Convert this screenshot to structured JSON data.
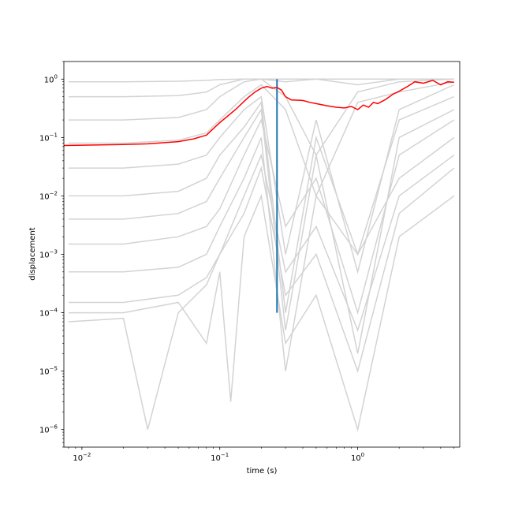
{
  "chart_data": {
    "type": "line",
    "title": "",
    "xlabel": "time (s)",
    "ylabel": "displacement",
    "xscale": "log",
    "yscale": "log",
    "xlim": [
      0.0074,
      5.5
    ],
    "ylim": [
      5e-07,
      2.0
    ],
    "grid": false,
    "legend": "none",
    "x_ticks": [
      {
        "value": 0.01,
        "base": "10",
        "exp": "−2"
      },
      {
        "value": 0.1,
        "base": "10",
        "exp": "−1"
      },
      {
        "value": 1,
        "base": "10",
        "exp": "0"
      }
    ],
    "y_ticks": [
      {
        "value": 1e-06,
        "base": "10",
        "exp": "−6"
      },
      {
        "value": 1e-05,
        "base": "10",
        "exp": "−5"
      },
      {
        "value": 0.0001,
        "base": "10",
        "exp": "−4"
      },
      {
        "value": 0.001,
        "base": "10",
        "exp": "−3"
      },
      {
        "value": 0.01,
        "base": "10",
        "exp": "−2"
      },
      {
        "value": 0.1,
        "base": "10",
        "exp": "−1"
      },
      {
        "value": 1,
        "base": "10",
        "exp": "0"
      }
    ],
    "colors": {
      "background_series": "#d3d3d3",
      "highlight_series": "#ff0000",
      "marker_line": "#1f77b4"
    },
    "background_series": [
      {
        "x": [
          0.008,
          0.02,
          0.05,
          0.08,
          0.1,
          0.15,
          0.2,
          0.3,
          0.5,
          1,
          2,
          5
        ],
        "values": [
          0.9,
          0.9,
          0.92,
          0.95,
          0.98,
          1,
          1,
          1,
          1,
          1,
          1,
          1
        ]
      },
      {
        "x": [
          0.008,
          0.02,
          0.05,
          0.08,
          0.1,
          0.15,
          0.2,
          0.3,
          0.5,
          1,
          2,
          5
        ],
        "values": [
          0.5,
          0.5,
          0.52,
          0.6,
          0.8,
          1,
          1,
          0.9,
          1,
          0.8,
          1,
          1
        ]
      },
      {
        "x": [
          0.008,
          0.02,
          0.05,
          0.08,
          0.1,
          0.15,
          0.2,
          0.3,
          0.5,
          1,
          2,
          5
        ],
        "values": [
          0.2,
          0.2,
          0.22,
          0.3,
          0.5,
          0.9,
          1,
          0.5,
          0.05,
          0.6,
          0.9,
          1
        ]
      },
      {
        "x": [
          0.008,
          0.02,
          0.05,
          0.08,
          0.1,
          0.15,
          0.2,
          0.3,
          0.5,
          1,
          2,
          5
        ],
        "values": [
          0.08,
          0.08,
          0.09,
          0.12,
          0.2,
          0.5,
          0.8,
          0.3,
          0.01,
          0.4,
          0.6,
          0.9
        ]
      },
      {
        "x": [
          0.008,
          0.02,
          0.05,
          0.08,
          0.1,
          0.15,
          0.2,
          0.3,
          0.5,
          1,
          2,
          5
        ],
        "values": [
          0.03,
          0.03,
          0.035,
          0.05,
          0.1,
          0.3,
          0.5,
          0.001,
          0.2,
          0.0005,
          0.3,
          0.8
        ]
      },
      {
        "x": [
          0.008,
          0.02,
          0.05,
          0.08,
          0.1,
          0.15,
          0.2,
          0.3,
          0.5,
          1,
          2,
          5
        ],
        "values": [
          0.01,
          0.01,
          0.012,
          0.02,
          0.05,
          0.15,
          0.4,
          0.0001,
          0.1,
          0.001,
          0.2,
          0.5
        ]
      },
      {
        "x": [
          0.008,
          0.02,
          0.05,
          0.08,
          0.1,
          0.15,
          0.2,
          0.3,
          0.5,
          1,
          2,
          5
        ],
        "values": [
          0.004,
          0.004,
          0.005,
          0.008,
          0.02,
          0.1,
          0.3,
          5e-05,
          0.05,
          2e-05,
          0.1,
          0.3
        ]
      },
      {
        "x": [
          0.008,
          0.02,
          0.05,
          0.08,
          0.1,
          0.15,
          0.2,
          0.3,
          0.5,
          1,
          2,
          5
        ],
        "values": [
          0.0015,
          0.0015,
          0.002,
          0.003,
          0.006,
          0.05,
          0.2,
          0.003,
          0.02,
          0.0001,
          0.05,
          0.2
        ]
      },
      {
        "x": [
          0.008,
          0.02,
          0.05,
          0.08,
          0.1,
          0.15,
          0.2,
          0.3,
          0.5,
          1,
          2,
          5
        ],
        "values": [
          0.0005,
          0.0005,
          0.0006,
          0.001,
          0.003,
          0.02,
          0.1,
          1e-05,
          0.01,
          0.001,
          0.02,
          0.1
        ]
      },
      {
        "x": [
          0.008,
          0.02,
          0.05,
          0.08,
          0.1,
          0.15,
          0.2,
          0.3,
          0.5,
          1,
          2,
          5
        ],
        "values": [
          0.00015,
          0.00015,
          0.0002,
          0.0004,
          0.001,
          0.01,
          0.05,
          0.0005,
          0.003,
          5e-05,
          0.01,
          0.05
        ]
      },
      {
        "x": [
          0.008,
          0.02,
          0.03,
          0.05,
          0.08,
          0.1,
          0.15,
          0.2,
          0.3,
          0.5,
          1,
          2,
          5
        ],
        "values": [
          7e-05,
          8e-05,
          1e-06,
          0.0001,
          0.0003,
          0.001,
          0.005,
          0.03,
          0.0002,
          0.001,
          1e-05,
          0.005,
          0.03
        ]
      },
      {
        "x": [
          0.008,
          0.02,
          0.05,
          0.08,
          0.1,
          0.12,
          0.15,
          0.2,
          0.3,
          0.5,
          1,
          2,
          5
        ],
        "values": [
          0.0001,
          0.0001,
          0.00015,
          3e-05,
          0.0005,
          3e-06,
          0.002,
          0.01,
          3e-05,
          0.0002,
          1e-06,
          0.002,
          0.01
        ]
      }
    ],
    "highlight_series": {
      "x": [
        0.0074,
        0.01,
        0.02,
        0.03,
        0.05,
        0.065,
        0.08,
        0.1,
        0.13,
        0.16,
        0.18,
        0.2,
        0.22,
        0.24,
        0.26,
        0.28,
        0.3,
        0.33,
        0.4,
        0.45,
        0.5,
        0.6,
        0.7,
        0.8,
        0.9,
        1.0,
        1.1,
        1.2,
        1.3,
        1.4,
        1.6,
        1.8,
        2.0,
        2.3,
        2.6,
        3.0,
        3.5,
        4.0,
        4.5,
        5.0
      ],
      "values": [
        0.073,
        0.074,
        0.076,
        0.078,
        0.085,
        0.095,
        0.11,
        0.18,
        0.3,
        0.48,
        0.6,
        0.7,
        0.75,
        0.7,
        0.72,
        0.65,
        0.5,
        0.44,
        0.43,
        0.4,
        0.38,
        0.35,
        0.33,
        0.32,
        0.34,
        0.3,
        0.36,
        0.33,
        0.4,
        0.38,
        0.45,
        0.55,
        0.62,
        0.75,
        0.9,
        0.85,
        0.95,
        0.8,
        0.9,
        0.88
      ]
    },
    "vertical_marker": {
      "x": 0.26,
      "y_from": 0.0001,
      "y_to": 1.0
    }
  }
}
